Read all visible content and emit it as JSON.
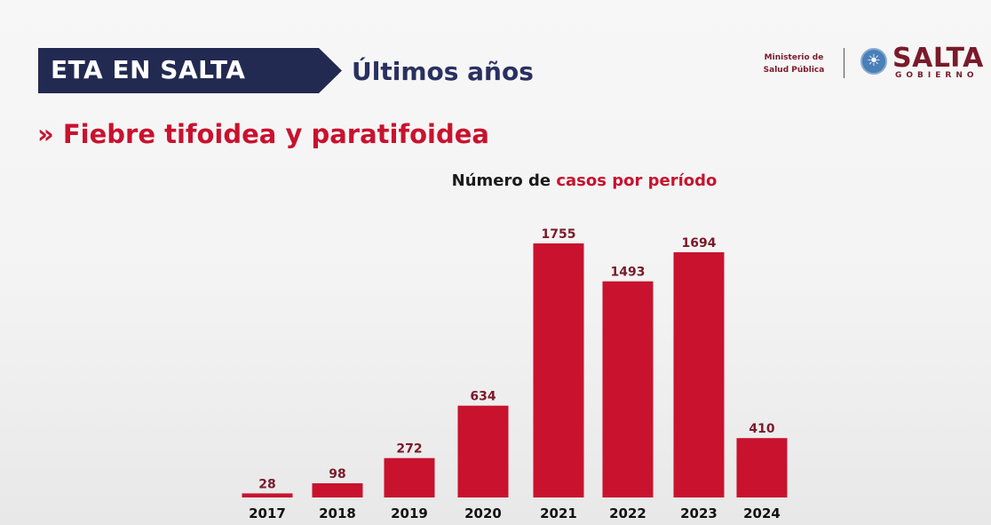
{
  "header": {
    "banner_title": "ETA EN SALTA",
    "subtitle": "Últimos años",
    "ministry_line1": "Ministerio de",
    "ministry_line2": "Salud Pública",
    "logo_name": "SALTA",
    "logo_sub": "GOBIERNO"
  },
  "section": {
    "marker": "»",
    "title": "Fiebre tifoidea y paratifoidea"
  },
  "colors": {
    "bar": "#c8122e",
    "label": "#7a1a2a",
    "banner": "#222a52"
  },
  "chart_data": {
    "type": "bar",
    "title_part1": "Número de ",
    "title_part2": "casos por período",
    "categories": [
      "2017",
      "2018",
      "2019",
      "2020",
      "2021",
      "2022",
      "2023",
      "2024"
    ],
    "values": [
      28,
      98,
      272,
      634,
      1755,
      1493,
      1694,
      410
    ],
    "xlabel": "",
    "ylabel": "",
    "ylim": [
      0,
      1755
    ],
    "grid": false,
    "legend": "none"
  }
}
